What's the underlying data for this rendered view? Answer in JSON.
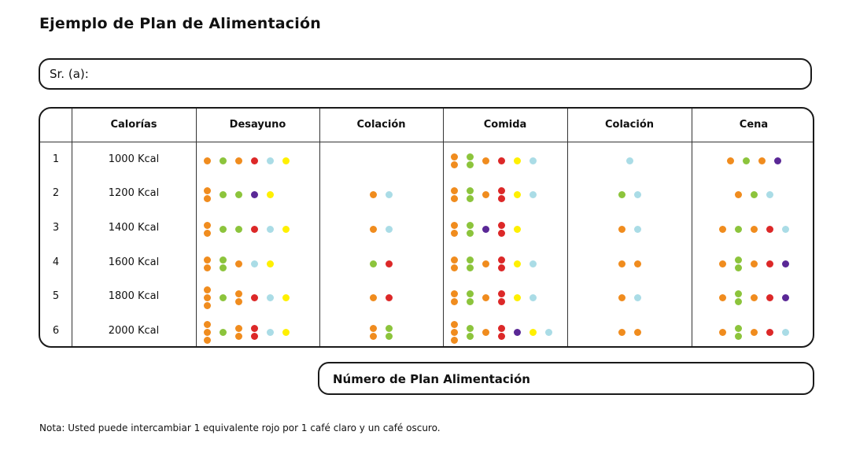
{
  "title": "Ejemplo de Plan de Alimentación",
  "name_label": "Sr. (a):",
  "headers": [
    "",
    "Calorías",
    "Desayuno",
    "Colación",
    "Comida",
    "Colación",
    "Cena"
  ],
  "colors": {
    "o": "#f08c1e",
    "g": "#8cc43c",
    "r": "#dc2828",
    "c": "#aadce6",
    "y": "#fff000",
    "p": "#5a2896"
  },
  "rows": [
    {
      "num": "1",
      "kcal": "1000 Kcal",
      "meals": [
        [
          "o",
          "g",
          "o",
          "r",
          "c",
          "y"
        ],
        [],
        [
          "oo",
          "gg",
          "o",
          "r",
          "y",
          "c"
        ],
        [
          "c"
        ],
        [
          "o",
          "g",
          "o",
          "p"
        ]
      ]
    },
    {
      "num": "2",
      "kcal": "1200 Kcal",
      "meals": [
        [
          "oo",
          "g",
          "g",
          "p",
          "y"
        ],
        [
          "o",
          "c"
        ],
        [
          "oo",
          "gg",
          "o",
          "rr",
          "y",
          "c"
        ],
        [
          "g",
          "c"
        ],
        [
          "o",
          "g",
          "c"
        ]
      ]
    },
    {
      "num": "3",
      "kcal": "1400 Kcal",
      "meals": [
        [
          "oo",
          "g",
          "g",
          "r",
          "c",
          "y"
        ],
        [
          "o",
          "c"
        ],
        [
          "oo",
          "gg",
          "p",
          "rr",
          "y"
        ],
        [
          "o",
          "c"
        ],
        [
          "o",
          "g",
          "o",
          "r",
          "c"
        ]
      ]
    },
    {
      "num": "4",
      "kcal": "1600 Kcal",
      "meals": [
        [
          "oo",
          "gg",
          "o",
          "c",
          "y"
        ],
        [
          "g",
          "r"
        ],
        [
          "oo",
          "gg",
          "o",
          "rr",
          "y",
          "c"
        ],
        [
          "o",
          "o"
        ],
        [
          "o",
          "gg",
          "o",
          "r",
          "p"
        ]
      ]
    },
    {
      "num": "5",
      "kcal": "1800 Kcal",
      "meals": [
        [
          "ooo",
          "g",
          "oo",
          "r",
          "c",
          "y"
        ],
        [
          "o",
          "r"
        ],
        [
          "oo",
          "gg",
          "o",
          "rr",
          "y",
          "c"
        ],
        [
          "o",
          "c"
        ],
        [
          "o",
          "gg",
          "o",
          "r",
          "p"
        ]
      ]
    },
    {
      "num": "6",
      "kcal": "2000 Kcal",
      "meals": [
        [
          "ooo",
          "g",
          "oo",
          "rr",
          "c",
          "y"
        ],
        [
          "oo",
          "gg"
        ],
        [
          "ooo",
          "gg",
          "o",
          "rr",
          "p",
          "y",
          "c"
        ],
        [
          "o",
          "o"
        ],
        [
          "o",
          "gg",
          "o",
          "r",
          "c"
        ]
      ]
    }
  ],
  "plan_label": "Número de Plan Alimentación",
  "note": "Nota: Usted puede intercambiar 1 equivalente rojo por 1 café claro y un café oscuro."
}
